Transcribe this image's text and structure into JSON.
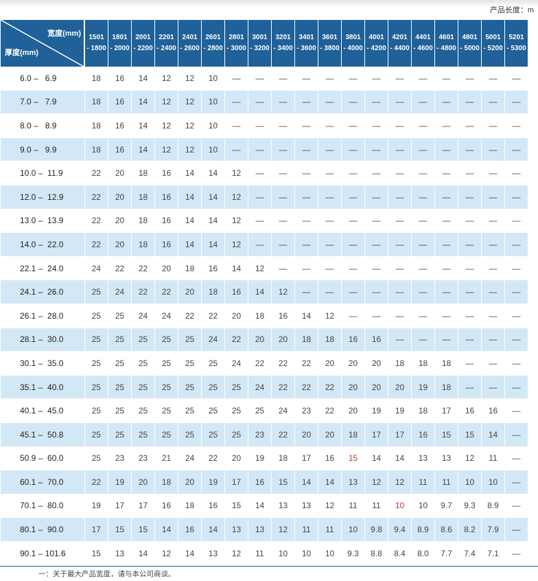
{
  "unit_note": "产品长度：m",
  "header": {
    "width_label": "宽度(mm)",
    "thickness_label": "厚度(mm)",
    "columns": [
      [
        "1501",
        "- 1800"
      ],
      [
        "1801",
        "- 2000"
      ],
      [
        "2001",
        "- 2200"
      ],
      [
        "2201",
        "- 2400"
      ],
      [
        "2401",
        "- 2600"
      ],
      [
        "2601",
        "- 2800"
      ],
      [
        "2801",
        "- 3000"
      ],
      [
        "3001",
        "- 3200"
      ],
      [
        "3201",
        "- 3400"
      ],
      [
        "3401",
        "- 3600"
      ],
      [
        "3601",
        "- 3800"
      ],
      [
        "3801",
        "- 4000"
      ],
      [
        "4001",
        "- 4200"
      ],
      [
        "4201",
        "- 4400"
      ],
      [
        "4401",
        "- 4600"
      ],
      [
        "4601",
        "- 4800"
      ],
      [
        "4801",
        "- 5000"
      ],
      [
        "5001",
        "- 5200"
      ],
      [
        "5201",
        "- 5300"
      ]
    ]
  },
  "rows": [
    {
      "t": "6.0 –   6.9",
      "v": [
        "18",
        "16",
        "14",
        "12",
        "12",
        "10",
        "—",
        "—",
        "—",
        "—",
        "—",
        "—",
        "—",
        "—",
        "—",
        "—",
        "—",
        "—",
        "—"
      ]
    },
    {
      "t": "7.0 –   7.9",
      "v": [
        "18",
        "16",
        "14",
        "12",
        "12",
        "10",
        "—",
        "—",
        "—",
        "—",
        "—",
        "—",
        "—",
        "—",
        "—",
        "—",
        "—",
        "—",
        "—"
      ]
    },
    {
      "t": "8.0 –   8.9",
      "v": [
        "18",
        "16",
        "14",
        "12",
        "12",
        "10",
        "—",
        "—",
        "—",
        "—",
        "—",
        "—",
        "—",
        "—",
        "—",
        "—",
        "—",
        "—",
        "—"
      ]
    },
    {
      "t": "9.0 –   9.9",
      "v": [
        "18",
        "16",
        "14",
        "12",
        "12",
        "10",
        "—",
        "—",
        "—",
        "—",
        "—",
        "—",
        "—",
        "—",
        "—",
        "—",
        "—",
        "—",
        "—"
      ]
    },
    {
      "t": "10.0 –  11.9",
      "v": [
        "22",
        "20",
        "18",
        "16",
        "14",
        "14",
        "12",
        "—",
        "—",
        "—",
        "—",
        "—",
        "—",
        "—",
        "—",
        "—",
        "—",
        "—",
        "—"
      ]
    },
    {
      "t": "12.0 –  12.9",
      "v": [
        "22",
        "20",
        "18",
        "16",
        "14",
        "14",
        "12",
        "—",
        "—",
        "—",
        "—",
        "—",
        "—",
        "—",
        "—",
        "—",
        "—",
        "—",
        "—"
      ]
    },
    {
      "t": "13.0 –  13.9",
      "v": [
        "22",
        "20",
        "18",
        "16",
        "14",
        "14",
        "12",
        "—",
        "—",
        "—",
        "—",
        "—",
        "—",
        "—",
        "—",
        "—",
        "—",
        "—",
        "—"
      ]
    },
    {
      "t": "14.0 –  22.0",
      "v": [
        "22",
        "20",
        "18",
        "16",
        "14",
        "14",
        "12",
        "—",
        "—",
        "—",
        "—",
        "—",
        "—",
        "—",
        "—",
        "—",
        "—",
        "—",
        "—"
      ]
    },
    {
      "t": "22.1 –  24.0",
      "v": [
        "24",
        "22",
        "22",
        "20",
        "18",
        "16",
        "14",
        "12",
        "—",
        "—",
        "—",
        "—",
        "—",
        "—",
        "—",
        "—",
        "—",
        "—",
        "—"
      ]
    },
    {
      "t": "24.1 –  26.0",
      "v": [
        "25",
        "24",
        "22",
        "22",
        "20",
        "18",
        "16",
        "14",
        "12",
        "—",
        "—",
        "—",
        "—",
        "—",
        "—",
        "—",
        "—",
        "—",
        "—"
      ]
    },
    {
      "t": "26.1 –  28.0",
      "v": [
        "25",
        "25",
        "24",
        "24",
        "22",
        "22",
        "20",
        "18",
        "16",
        "14",
        "12",
        "—",
        "—",
        "—",
        "—",
        "—",
        "—",
        "—",
        "—"
      ]
    },
    {
      "t": "28.1 –  30.0",
      "v": [
        "25",
        "25",
        "25",
        "25",
        "25",
        "24",
        "22",
        "20",
        "20",
        "18",
        "18",
        "16",
        "16",
        "—",
        "—",
        "—",
        "—",
        "—",
        "—"
      ]
    },
    {
      "t": "30.1 –  35.0",
      "v": [
        "25",
        "25",
        "25",
        "25",
        "25",
        "25",
        "24",
        "22",
        "22",
        "22",
        "20",
        "20",
        "20",
        "18",
        "18",
        "18",
        "—",
        "—",
        "—"
      ]
    },
    {
      "t": "35.1 –  40.0",
      "v": [
        "25",
        "25",
        "25",
        "25",
        "25",
        "25",
        "25",
        "24",
        "22",
        "22",
        "22",
        "20",
        "20",
        "20",
        "19",
        "18",
        "—",
        "—",
        "—"
      ]
    },
    {
      "t": "40.1 –  45.0",
      "v": [
        "25",
        "25",
        "25",
        "25",
        "25",
        "25",
        "25",
        "25",
        "24",
        "23",
        "22",
        "20",
        "19",
        "19",
        "18",
        "17",
        "16",
        "16",
        "—"
      ]
    },
    {
      "t": "45.1 –  50.8",
      "v": [
        "25",
        "25",
        "25",
        "25",
        "25",
        "25",
        "25",
        "23",
        "22",
        "20",
        "20",
        "18",
        "17",
        "17",
        "16",
        "15",
        "15",
        "14",
        "—"
      ]
    },
    {
      "t": "50.9 –  60.0",
      "v": [
        "25",
        "23",
        "23",
        "21",
        "24",
        "22",
        "20",
        "19",
        "18",
        "17",
        "16",
        "15",
        "14",
        "14",
        "13",
        "13",
        "12",
        "11",
        "—"
      ]
    },
    {
      "t": "60.1 –  70.0",
      "v": [
        "22",
        "19",
        "20",
        "18",
        "20",
        "19",
        "17",
        "16",
        "15",
        "14",
        "14",
        "13",
        "12",
        "12",
        "11",
        "11",
        "10",
        "10",
        "—"
      ]
    },
    {
      "t": "70.1 –  80.0",
      "v": [
        "19",
        "17",
        "17",
        "16",
        "18",
        "16",
        "15",
        "14",
        "13",
        "13",
        "12",
        "11",
        "11",
        "10",
        "10",
        "9.7",
        "9.3",
        "8.9",
        "—"
      ]
    },
    {
      "t": "80.1 –  90.0",
      "v": [
        "17",
        "15",
        "15",
        "14",
        "16",
        "14",
        "13",
        "13",
        "12",
        "11",
        "11",
        "10",
        "9.8",
        "9.4",
        "8.9",
        "8.6",
        "8.2",
        "7.9",
        "—"
      ]
    },
    {
      "t": "90.1 – 101.6",
      "v": [
        "15",
        "13",
        "14",
        "12",
        "14",
        "13",
        "12",
        "11",
        "10",
        "10",
        "10",
        "9.3",
        "8.8",
        "8.4",
        "8.0",
        "7.7",
        "7.4",
        "7.1",
        "—"
      ]
    }
  ],
  "highlighted_cells": [
    [
      16,
      11
    ],
    [
      18,
      13
    ]
  ],
  "colors": {
    "header": "#1f6198",
    "alt_row": "#d3e8f7",
    "highlight": "#c0392b"
  },
  "footnote": "一：关于最大产品宽度，请与本公司商谈。"
}
